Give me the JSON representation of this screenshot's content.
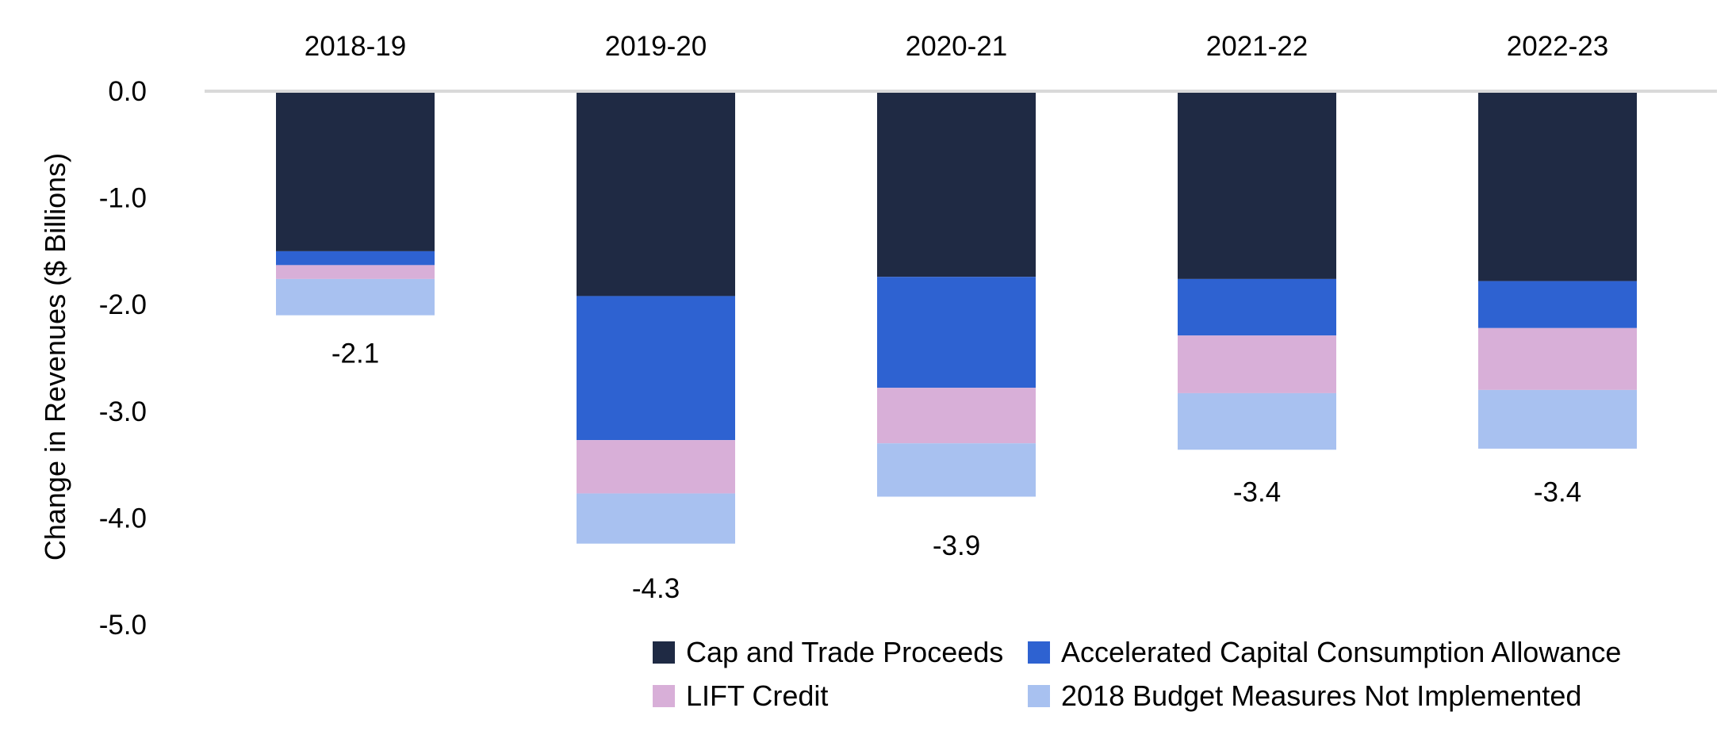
{
  "chart_data": {
    "type": "bar",
    "stacked": true,
    "title": "",
    "xlabel": "",
    "ylabel": "Change in Revenues ($ Billions)",
    "ylim": [
      -5.0,
      0.0
    ],
    "yticks": [
      "0.0",
      "-1.0",
      "-2.0",
      "-3.0",
      "-4.0",
      "-5.0"
    ],
    "ytick_values": [
      0,
      -1,
      -2,
      -3,
      -4,
      -5
    ],
    "categories": [
      "2018-19",
      "2019-20",
      "2020-21",
      "2021-22",
      "2022-23"
    ],
    "series": [
      {
        "name": "Cap and Trade Proceeds",
        "color": "#1f2a44",
        "values": [
          -1.5,
          -1.92,
          -1.74,
          -1.76,
          -1.78
        ]
      },
      {
        "name": "Accelerated Capital Consumption Allowance",
        "color": "#2e62d1",
        "values": [
          -0.13,
          -1.35,
          -1.04,
          -0.53,
          -0.44
        ]
      },
      {
        "name": "LIFT Credit",
        "color": "#d8afd8",
        "values": [
          -0.13,
          -0.5,
          -0.52,
          -0.54,
          -0.58
        ]
      },
      {
        "name": "2018 Budget Measures Not Implemented",
        "color": "#a8c1f0",
        "values": [
          -0.34,
          -0.47,
          -0.5,
          -0.53,
          -0.55
        ]
      }
    ],
    "totals": [
      "-2.1",
      "-4.3",
      "-3.9",
      "-3.4",
      "-3.4"
    ],
    "total_values": [
      -2.1,
      -4.3,
      -3.9,
      -3.4,
      -3.4
    ],
    "grid": false,
    "legend_position": "bottom-right",
    "zero_line_color": "#d9d9d9"
  }
}
